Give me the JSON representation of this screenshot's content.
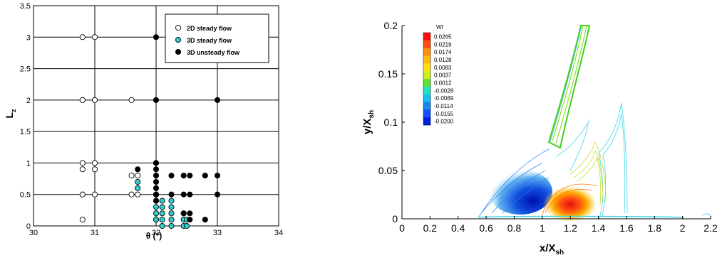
{
  "chart_data": [
    {
      "type": "scatter",
      "xlabel": "θ (°)",
      "ylabel": "L",
      "ylabel_sub": "z",
      "xlim": [
        30,
        34
      ],
      "ylim": [
        0,
        3.5
      ],
      "xticks": [
        30,
        31,
        32,
        33,
        34
      ],
      "yticks": [
        0,
        0.5,
        1,
        1.5,
        2,
        2.5,
        3,
        3.5
      ],
      "xtick_labels": [
        "30",
        "31",
        "32",
        "33",
        "34"
      ],
      "ytick_labels": [
        "0",
        "0.5",
        "1",
        "1.5",
        "2",
        "2.5",
        "3",
        "3.5"
      ],
      "grid": true,
      "legend_position": "top-right",
      "series": [
        {
          "name": "2D steady flow",
          "marker_color": "#ffffff",
          "x": [
            30.8,
            31.0,
            30.8,
            31.0,
            31.6,
            30.8,
            31.0,
            30.8,
            31.0,
            30.8,
            31.0,
            31.6,
            31.7,
            31.6,
            31.7,
            30.8,
            32.0
          ],
          "y": [
            3.0,
            3.0,
            2.0,
            2.0,
            2.0,
            1.0,
            1.0,
            0.9,
            0.9,
            0.5,
            0.5,
            0.8,
            0.8,
            0.5,
            0.5,
            0.1,
            0.1
          ]
        },
        {
          "name": "3D steady flow",
          "marker_color": "#33cccc",
          "x": [
            31.7,
            31.7,
            32.0,
            32.0,
            32.0,
            32.0,
            32.0,
            32.1,
            32.1,
            32.1,
            32.1,
            32.1,
            32.25,
            32.25,
            32.25,
            32.25,
            32.25,
            32.45,
            32.45,
            32.45,
            32.5,
            32.5
          ],
          "y": [
            0.7,
            0.6,
            0.5,
            0.4,
            0.3,
            0.2,
            0.1,
            0.4,
            0.3,
            0.2,
            0.1,
            0.0,
            0.4,
            0.3,
            0.2,
            0.1,
            0.0,
            0.2,
            0.1,
            0.0,
            0.1,
            0.0
          ]
        },
        {
          "name": "3D unsteady flow",
          "marker_color": "#000000",
          "x": [
            32.0,
            32.0,
            33.0,
            31.7,
            32.0,
            32.0,
            32.25,
            32.45,
            32.55,
            32.8,
            33.0,
            32.0,
            32.0,
            32.0,
            32.0,
            32.0,
            32.25,
            32.45,
            32.55,
            33.0,
            32.0,
            32.45,
            32.55,
            32.8,
            32.55
          ],
          "y": [
            3.0,
            2.0,
            2.0,
            0.9,
            1.0,
            0.9,
            0.8,
            0.8,
            0.8,
            0.8,
            0.8,
            0.8,
            0.7,
            0.6,
            0.5,
            0.4,
            0.5,
            0.5,
            0.5,
            0.5,
            1.0,
            0.2,
            0.2,
            0.1,
            0.1
          ]
        }
      ]
    },
    {
      "type": "contour",
      "xlabel": "x/X",
      "xlabel_sub": "sh",
      "ylabel": "y/X",
      "ylabel_sub": "sh",
      "xlim": [
        0,
        2.2
      ],
      "ylim": [
        0,
        0.2
      ],
      "xticks": [
        0,
        0.2,
        0.4,
        0.6,
        0.8,
        1,
        1.2,
        1.4,
        1.6,
        1.8,
        2,
        2.2
      ],
      "xtick_labels": [
        "0",
        "0.2",
        "0.4",
        "0.6",
        "0.8",
        "1",
        "1.2",
        "1.4",
        "1.6",
        "1.8",
        "2",
        "2.2"
      ],
      "yticks": [
        0,
        0.05,
        0.1,
        0.15,
        0.2
      ],
      "ytick_labels": [
        "0",
        "0.05",
        "0.1",
        "0.15",
        "0.2"
      ],
      "legend_position": "top-left",
      "colorbar": {
        "title": "Wf",
        "levels": [
          "0.0265",
          "0.0219",
          "0.0174",
          "0.0128",
          "0.0083",
          "0.0037",
          "0.0012",
          "-0.0028",
          "-0.0069",
          "-0.0114",
          "-0.0155",
          "-0.0200"
        ],
        "colors": [
          "#ff1010",
          "#ff4a10",
          "#ff8a10",
          "#ffb810",
          "#ffe010",
          "#c8f018",
          "#60e030",
          "#20e0c0",
          "#10c0f0",
          "#1088f0",
          "#1050ff",
          "#0020e0"
        ]
      }
    }
  ]
}
